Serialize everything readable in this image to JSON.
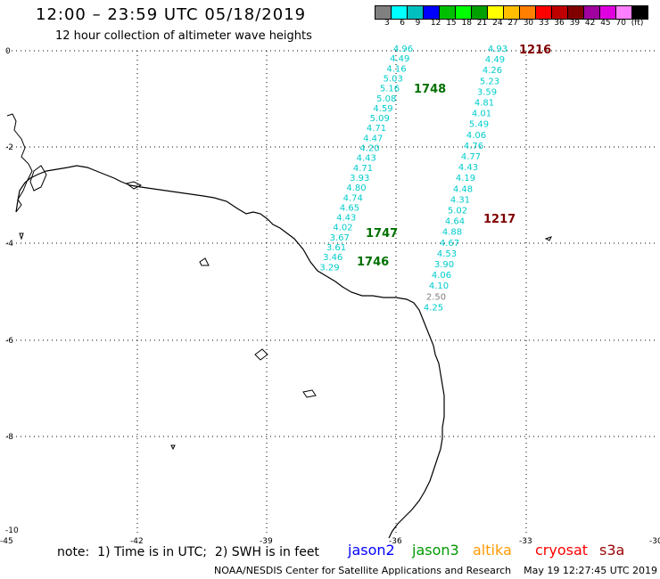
{
  "header": {
    "title": "12:00 – 23:59 UTC 05/18/2019",
    "subtitle": "12 hour collection of altimeter wave heights"
  },
  "scale": {
    "colors": [
      "#808080",
      "#00ffff",
      "#00bfbf",
      "#0000ff",
      "#00bf00",
      "#00ff00",
      "#00a000",
      "#ffff00",
      "#ffbf00",
      "#ff8000",
      "#ff0000",
      "#bf0000",
      "#800000",
      "#9f009f",
      "#df00df",
      "#ff80ff",
      "#000000"
    ],
    "labels": [
      "3",
      "6",
      "9",
      "12",
      "15",
      "18",
      "21",
      "24",
      "27",
      "30",
      "33",
      "36",
      "39",
      "42",
      "45",
      "70",
      "(ft)"
    ]
  },
  "axes": {
    "lon_labels": [
      "-45",
      "-42",
      "-39",
      "-36",
      "-33",
      "-30"
    ],
    "lat_labels": [
      "0",
      "-2",
      "-4",
      "-6",
      "-8",
      "-10"
    ]
  },
  "tracks": [
    {
      "satellite": "jason3",
      "color": "#00cccc",
      "values": [
        "4.96",
        "4.49",
        "4.16",
        "5.03",
        "5.16",
        "5.08",
        "4.59",
        "5.09",
        "4.71",
        "4.47",
        "4.20",
        "4.43",
        "4.71",
        "3.93",
        "4.80",
        "4.74",
        "4.65",
        "4.43",
        "4.02",
        "3.67",
        "3.61",
        "3.46",
        "3.29"
      ]
    },
    {
      "satellite": "cryosat",
      "color": "#00cccc",
      "values": [
        "4.93",
        "4.49",
        "4.26",
        "5.23",
        "3.59",
        "4.81",
        "4.01",
        "5.49",
        "4.06",
        "4.76",
        "4.77",
        "4.43",
        "4.19",
        "4.48",
        "4.31",
        "5.02",
        "4.64",
        "4.88",
        "4.67",
        "4.53",
        "3.90",
        "4.06",
        "4.10",
        "2.50",
        "4.25"
      ]
    }
  ],
  "time_labels": [
    {
      "text": "1216",
      "color": "#800000"
    },
    {
      "text": "1748",
      "color": "#007000"
    },
    {
      "text": "1217",
      "color": "#800000"
    },
    {
      "text": "1747",
      "color": "#007000"
    },
    {
      "text": "1746",
      "color": "#007000"
    }
  ],
  "footer": {
    "note": "note:  1) Time is in UTC;  2) SWH is in feet",
    "satellites": [
      {
        "name": "jason2",
        "color": "#0000ff"
      },
      {
        "name": "jason3",
        "color": "#009900"
      },
      {
        "name": "altika",
        "color": "#ff9900"
      },
      {
        "name": "cryosat",
        "color": "#ff0000"
      },
      {
        "name": "s3a",
        "color": "#990000"
      }
    ],
    "credit": "NOAA/NESDIS Center for Satellite Applications and Research    May 19 12:27:45 UTC 2019"
  }
}
